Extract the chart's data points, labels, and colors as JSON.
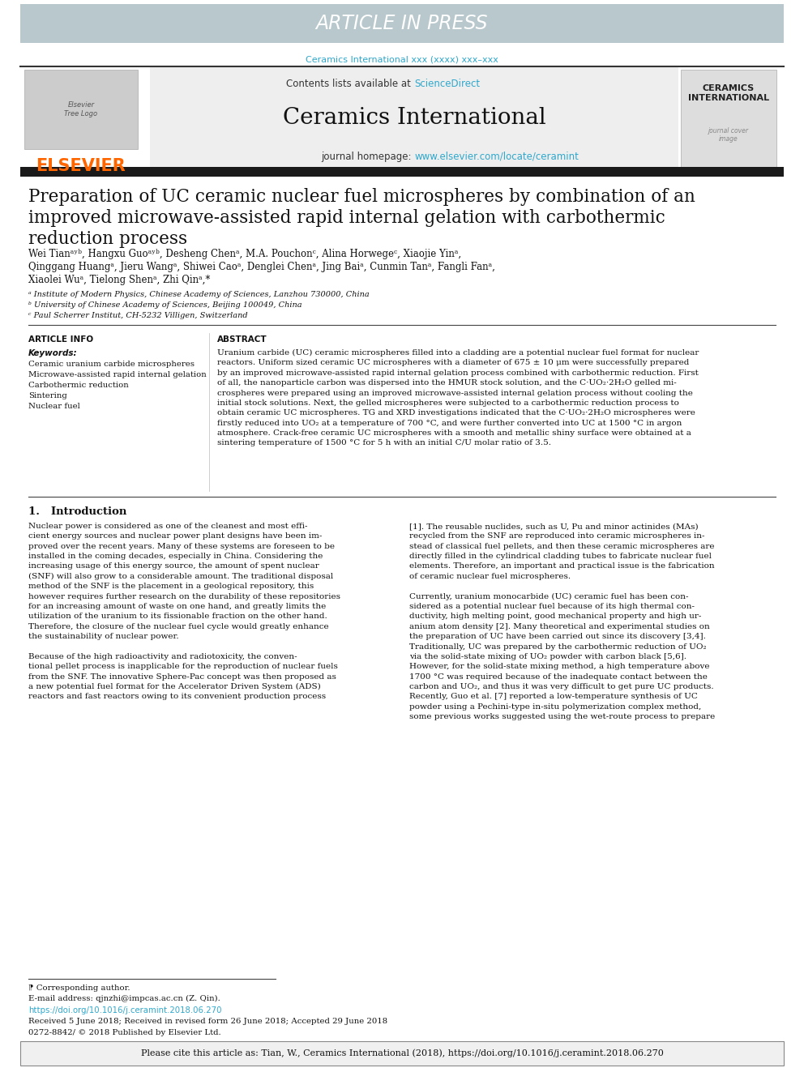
{
  "article_in_press_bg": "#b8c8cc",
  "article_in_press_text": "ARTICLE IN PRESS",
  "journal_cite": "Ceramics International xxx (xxxx) xxx–xxx",
  "journal_cite_color": "#2fa8cc",
  "contents_text": "Contents lists available at ",
  "science_direct": "ScienceDirect",
  "science_direct_color": "#2fa8cc",
  "journal_name": "Ceramics International",
  "journal_homepage_prefix": "journal homepage: ",
  "journal_homepage_url": "www.elsevier.com/locate/ceramint",
  "journal_homepage_color": "#2fa8cc",
  "elsevier_color": "#ff6600",
  "header_bg": "#e8e8e8",
  "dark_bar_color": "#333333",
  "paper_title_line1": "Preparation of UC ceramic nuclear fuel microspheres by combination of an",
  "paper_title_line2": "improved microwave-assisted rapid internal gelation with carbothermic",
  "paper_title_line3": "reduction process",
  "authors_line1": "Wei Tianᵃʸᵇ, Hangxu Guoᵃʸᵇ, Desheng Chenᵃ, M.A. Pouchonᶜ, Alina Horwegeᶜ, Xiaojie Yinᵃ,",
  "authors_line2": "Qinggang Huangᵃ, Jieru Wangᵃ, Shiwei Caoᵃ, Denglei Chenᵃ, Jing Baiᵃ, Cunmin Tanᵃ, Fangli Fanᵃ,",
  "authors_line3": "Xiaolei Wuᵃ, Tielong Shenᵃ, Zhi Qinᵃ,*",
  "affil_a": "ᵃ Institute of Modern Physics, Chinese Academy of Sciences, Lanzhou 730000, China",
  "affil_b": "ᵇ University of Chinese Academy of Sciences, Beijing 100049, China",
  "affil_c": "ᶜ Paul Scherrer Institut, CH-5232 Villigen, Switzerland",
  "article_info_title": "ARTICLE INFO",
  "keywords_title": "Keywords:",
  "keywords": [
    "Ceramic uranium carbide microspheres",
    "Microwave-assisted rapid internal gelation",
    "Carbothermic reduction",
    "Sintering",
    "Nuclear fuel"
  ],
  "abstract_title": "ABSTRACT",
  "abstract_text": "Uranium carbide (UC) ceramic microspheres filled into a cladding are a potential nuclear fuel format for nuclear\nreactors. Uniform sized ceramic UC microspheres with a diameter of 675 ± 10 μm were successfully prepared\nby an improved microwave-assisted rapid internal gelation process combined with carbothermic reduction. First\nof all, the nanoparticle carbon was dispersed into the HMUR stock solution, and the C·UO₂·2H₂O gelled mi-\ncrospheres were prepared using an improved microwave-assisted internal gelation process without cooling the\ninitial stock solutions. Next, the gelled microspheres were subjected to a carbothermic reduction process to\nobtain ceramic UC microspheres. TG and XRD investigations indicated that the C·UO₂·2H₂O microspheres were\nfirstly reduced into UO₂ at a temperature of 700 °C, and were further converted into UC at 1500 °C in argon\natmosphere. Crack-free ceramic UC microspheres with a smooth and metallic shiny surface were obtained at a\nsintering temperature of 1500 °C for 5 h with an initial C/U molar ratio of 3.5.",
  "section1_title": "1.   Introduction",
  "intro_text_left": "Nuclear power is considered as one of the cleanest and most effi-\ncient energy sources and nuclear power plant designs have been im-\nproved over the recent years. Many of these systems are foreseen to be\ninstalled in the coming decades, especially in China. Considering the\nincreasing usage of this energy source, the amount of spent nuclear\n(SNF) will also grow to a considerable amount. The traditional disposal\nmethod of the SNF is the placement in a geological repository, this\nhowever requires further research on the durability of these repositories\nfor an increasing amount of waste on one hand, and greatly limits the\nutilization of the uranium to its fissionable fraction on the other hand.\nTherefore, the closure of the nuclear fuel cycle would greatly enhance\nthe sustainability of nuclear power.\n\nBecause of the high radioactivity and radiotoxicity, the conven-\ntional pellet process is inapplicable for the reproduction of nuclear fuels\nfrom the SNF. The innovative Sphere-Pac concept was then proposed as\na new potential fuel format for the Accelerator Driven System (ADS)\nreactors and fast reactors owing to its convenient production process",
  "intro_text_right": "[1]. The reusable nuclides, such as U, Pu and minor actinides (MAs)\nrecycled from the SNF are reproduced into ceramic microspheres in-\nstead of classical fuel pellets, and then these ceramic microspheres are\ndirectly filled in the cylindrical cladding tubes to fabricate nuclear fuel\nelements. Therefore, an important and practical issue is the fabrication\nof ceramic nuclear fuel microspheres.\n\nCurrently, uranium monocarbide (UC) ceramic fuel has been con-\nsidered as a potential nuclear fuel because of its high thermal con-\nductivity, high melting point, good mechanical property and high ur-\nanium atom density [2]. Many theoretical and experimental studies on\nthe preparation of UC have been carried out since its discovery [3,4].\nTraditionally, UC was prepared by the carbothermic reduction of UO₂\nvia the solid-state mixing of UO₂ powder with carbon black [5,6].\nHowever, for the solid-state mixing method, a high temperature above\n1700 °C was required because of the inadequate contact between the\ncarbon and UO₂, and thus it was very difficult to get pure UC products.\nRecently, Guo et al. [7] reported a low-temperature synthesis of UC\npowder using a Pechini-type in-situ polymerization complex method,\nsome previous works suggested using the wet-route process to prepare",
  "footnote_corresponding": "⁋ Corresponding author.",
  "footnote_email": "E-mail address: qjnzhi@impcas.ac.cn (Z. Qin).",
  "doi_text": "https://doi.org/10.1016/j.ceramint.2018.06.270",
  "doi_color": "#2fa8cc",
  "received_text": "Received 5 June 2018; Received in revised form 26 June 2018; Accepted 29 June 2018",
  "copyright_text": "0272-8842/ © 2018 Published by Elsevier Ltd.",
  "cite_box_text": "Please cite this article as: Tian, W., Ceramics International (2018), https://doi.org/10.1016/j.ceramint.2018.06.270",
  "cite_box_bg": "#f0f0f0"
}
